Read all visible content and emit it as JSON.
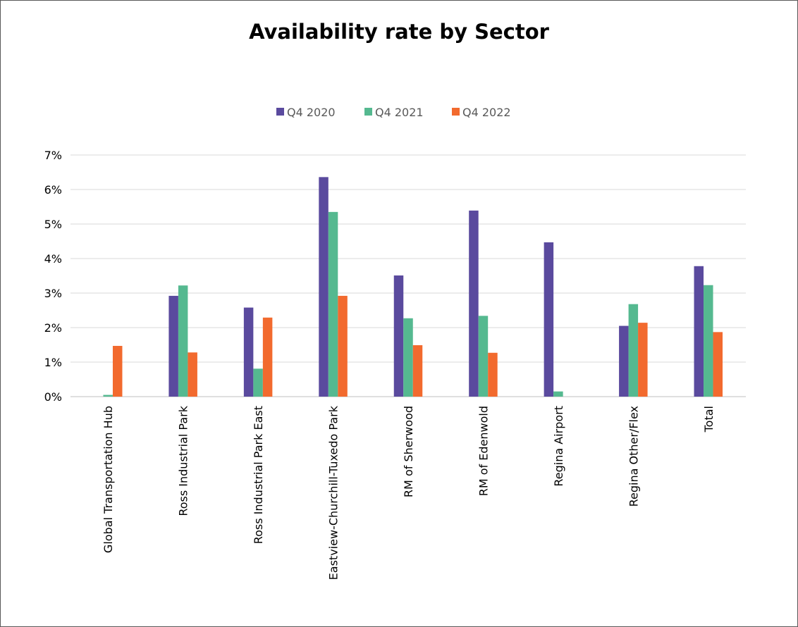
{
  "chart_data": {
    "type": "bar",
    "title": "Availability rate by Sector",
    "xlabel": "",
    "ylabel": "",
    "ylim": [
      0,
      7
    ],
    "y_tick_labels": [
      "0%",
      "1%",
      "2%",
      "3%",
      "4%",
      "5%",
      "6%",
      "7%"
    ],
    "y_unit": "%",
    "grid": true,
    "legend_position": "top",
    "categories": [
      "Global Transportation Hub",
      "Ross Industrial Park",
      "Ross Industrial Park East",
      "Eastview-Churchill-Tuxedo Park",
      "RM of Sherwood",
      "RM of Edenwold",
      "Regina Airport",
      "Regina Other/Flex",
      "Total"
    ],
    "series": [
      {
        "name": "Q4 2020",
        "color": "#5a4a9e",
        "values": [
          0,
          2.92,
          2.58,
          6.36,
          3.51,
          5.39,
          4.47,
          2.05,
          3.78
        ]
      },
      {
        "name": "Q4 2021",
        "color": "#55b990",
        "values": [
          0.05,
          3.22,
          0.81,
          5.35,
          2.27,
          2.34,
          0.15,
          2.68,
          3.23
        ]
      },
      {
        "name": "Q4 2022",
        "color": "#f26a2e",
        "values": [
          1.47,
          1.28,
          2.29,
          2.92,
          1.49,
          1.27,
          0,
          2.14,
          1.87
        ]
      }
    ]
  }
}
